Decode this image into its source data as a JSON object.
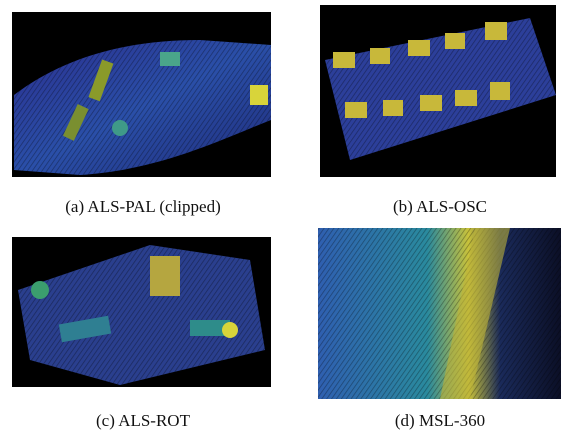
{
  "figure": {
    "panels": [
      {
        "caption": "(a) ALS-PAL (clipped)"
      },
      {
        "caption": "(b) ALS-OSC"
      },
      {
        "caption": "(c) ALS-ROT"
      },
      {
        "caption": "(d) MSL-360"
      }
    ]
  }
}
